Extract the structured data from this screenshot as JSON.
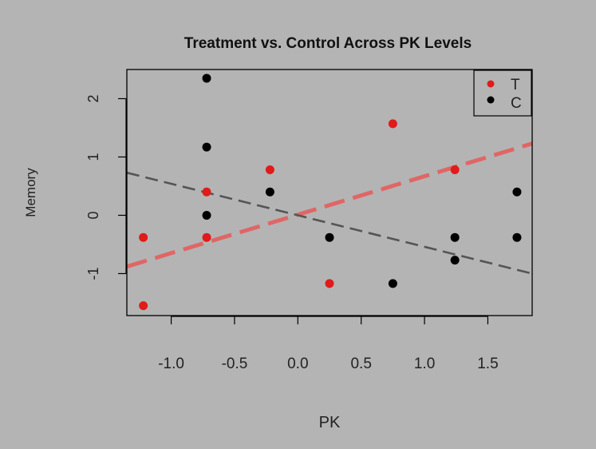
{
  "chart_data": {
    "type": "scatter",
    "title": "Treatment vs. Control Across PK Levels",
    "xlabel": "PK",
    "ylabel": "Memory",
    "xlim": [
      -1.35,
      1.85
    ],
    "ylim": [
      -1.72,
      2.5
    ],
    "x_ticks": [
      -1.0,
      -0.5,
      0.0,
      0.5,
      1.0,
      1.5
    ],
    "x_tick_labels": [
      "-1.0",
      "-0.5",
      "0.0",
      "0.5",
      "1.0",
      "1.5"
    ],
    "y_ticks": [
      -1,
      0,
      1,
      2
    ],
    "y_tick_labels": [
      "-1",
      "0",
      "1",
      "2"
    ],
    "grid": false,
    "legend_position": "top-right",
    "series": [
      {
        "name": "T",
        "color": "#e11a1a",
        "points": [
          {
            "x": -1.22,
            "y": -0.38
          },
          {
            "x": -1.22,
            "y": -1.55
          },
          {
            "x": -0.72,
            "y": 0.4
          },
          {
            "x": -0.72,
            "y": -0.38
          },
          {
            "x": -0.22,
            "y": 0.78
          },
          {
            "x": 0.25,
            "y": -1.17
          },
          {
            "x": 0.75,
            "y": 1.57
          },
          {
            "x": 1.24,
            "y": 0.78
          }
        ]
      },
      {
        "name": "C",
        "color": "#000000",
        "points": [
          {
            "x": -0.72,
            "y": 2.35
          },
          {
            "x": -0.72,
            "y": 1.17
          },
          {
            "x": -0.72,
            "y": 0.0
          },
          {
            "x": -0.22,
            "y": 0.4
          },
          {
            "x": 0.25,
            "y": -0.38
          },
          {
            "x": 0.75,
            "y": -1.17
          },
          {
            "x": 1.24,
            "y": -0.38
          },
          {
            "x": 1.24,
            "y": -0.77
          },
          {
            "x": 1.73,
            "y": 0.4
          },
          {
            "x": 1.73,
            "y": -0.38
          }
        ]
      }
    ],
    "trend_lines": [
      {
        "series": "T",
        "color": "#e06666",
        "style": "dashed",
        "from": {
          "x": -1.35,
          "y": -0.88
        },
        "to": {
          "x": 1.85,
          "y": 1.23
        }
      },
      {
        "series": "C",
        "color": "#555555",
        "style": "dashed",
        "from": {
          "x": -1.35,
          "y": 0.73
        },
        "to": {
          "x": 1.85,
          "y": -1.0
        }
      }
    ]
  }
}
